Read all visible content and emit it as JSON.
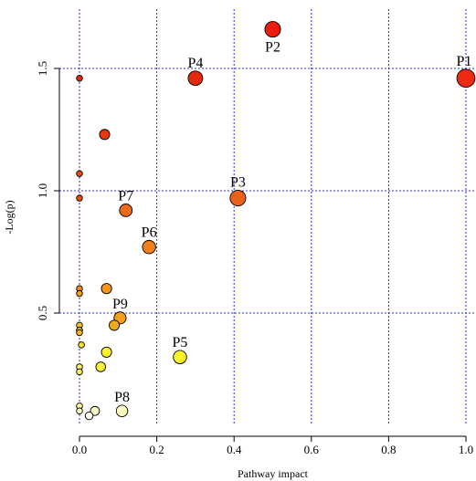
{
  "chart_data": {
    "type": "scatter",
    "xlabel": "Pathway impact",
    "ylabel": "-Log(p)",
    "xlim": [
      0.0,
      1.0
    ],
    "ylim": [
      0.0,
      1.75
    ],
    "x_ticks": [
      {
        "value": 0.0,
        "label": "0.0"
      },
      {
        "value": 0.2,
        "label": "0.2"
      },
      {
        "value": 0.4,
        "label": "0.4"
      },
      {
        "value": 0.6,
        "label": "0.6"
      },
      {
        "value": 0.8,
        "label": "0.8"
      },
      {
        "value": 1.0,
        "label": "1.0"
      }
    ],
    "y_ticks": [
      {
        "value": 0.5,
        "label": "0.5"
      },
      {
        "value": 1.0,
        "label": "1.0"
      },
      {
        "value": 1.5,
        "label": "1.5"
      }
    ],
    "grid": true,
    "grid_color": "#2b2bd6",
    "points": [
      {
        "label": "P1",
        "x": 1.0,
        "y": 1.46,
        "size": 3.0,
        "color": "#ee2a12"
      },
      {
        "label": "P2",
        "x": 0.5,
        "y": 1.66,
        "size": 2.6,
        "color": "#ee1c0e"
      },
      {
        "label": "P4",
        "x": 0.3,
        "y": 1.46,
        "size": 2.4,
        "color": "#e4280c"
      },
      {
        "label": "P3",
        "x": 0.41,
        "y": 0.97,
        "size": 2.6,
        "color": "#ec6018"
      },
      {
        "label": "P7",
        "x": 0.12,
        "y": 0.92,
        "size": 2.1,
        "color": "#ec6a18"
      },
      {
        "label": "P6",
        "x": 0.18,
        "y": 0.77,
        "size": 2.2,
        "color": "#ee7f1a"
      },
      {
        "label": "P9",
        "x": 0.105,
        "y": 0.48,
        "size": 2.0,
        "color": "#f29d1c"
      },
      {
        "label": "P5",
        "x": 0.26,
        "y": 0.32,
        "size": 2.2,
        "color": "#fef528"
      },
      {
        "label": "P8",
        "x": 0.11,
        "y": 0.1,
        "size": 1.9,
        "color": "#fcfcbe"
      },
      {
        "label": "",
        "x": 0.0,
        "y": 1.46,
        "size": 1.0,
        "color": "#e4260c"
      },
      {
        "label": "",
        "x": 0.065,
        "y": 1.23,
        "size": 1.7,
        "color": "#e4380c"
      },
      {
        "label": "",
        "x": 0.0,
        "y": 1.07,
        "size": 1.0,
        "color": "#e84a12"
      },
      {
        "label": "",
        "x": 0.0,
        "y": 0.97,
        "size": 1.0,
        "color": "#e84e12"
      },
      {
        "label": "",
        "x": 0.07,
        "y": 0.6,
        "size": 1.7,
        "color": "#f2961c"
      },
      {
        "label": "",
        "x": 0.0,
        "y": 0.6,
        "size": 1.0,
        "color": "#f28a1c"
      },
      {
        "label": "",
        "x": 0.0,
        "y": 0.58,
        "size": 1.0,
        "color": "#f29a1c"
      },
      {
        "label": "",
        "x": 0.09,
        "y": 0.45,
        "size": 1.7,
        "color": "#f0aa20"
      },
      {
        "label": "",
        "x": 0.0,
        "y": 0.45,
        "size": 1.0,
        "color": "#f0c626"
      },
      {
        "label": "",
        "x": 0.0,
        "y": 0.43,
        "size": 1.0,
        "color": "#f0ba22"
      },
      {
        "label": "",
        "x": 0.0,
        "y": 0.42,
        "size": 1.0,
        "color": "#f2b624"
      },
      {
        "label": "",
        "x": 0.005,
        "y": 0.37,
        "size": 1.0,
        "color": "#f6e02c"
      },
      {
        "label": "",
        "x": 0.07,
        "y": 0.34,
        "size": 1.7,
        "color": "#fcf030"
      },
      {
        "label": "",
        "x": 0.055,
        "y": 0.28,
        "size": 1.6,
        "color": "#fcf23c"
      },
      {
        "label": "",
        "x": 0.0,
        "y": 0.28,
        "size": 1.0,
        "color": "#fcf46a"
      },
      {
        "label": "",
        "x": 0.0,
        "y": 0.26,
        "size": 1.0,
        "color": "#fcf25a"
      },
      {
        "label": "",
        "x": 0.0,
        "y": 0.12,
        "size": 1.0,
        "color": "#fcfca8"
      },
      {
        "label": "",
        "x": 0.0,
        "y": 0.1,
        "size": 1.0,
        "color": "#fcfcc0"
      },
      {
        "label": "",
        "x": 0.04,
        "y": 0.1,
        "size": 1.5,
        "color": "#fcfcc8"
      },
      {
        "label": "",
        "x": 0.025,
        "y": 0.08,
        "size": 1.3,
        "color": "#fefef0"
      }
    ]
  }
}
